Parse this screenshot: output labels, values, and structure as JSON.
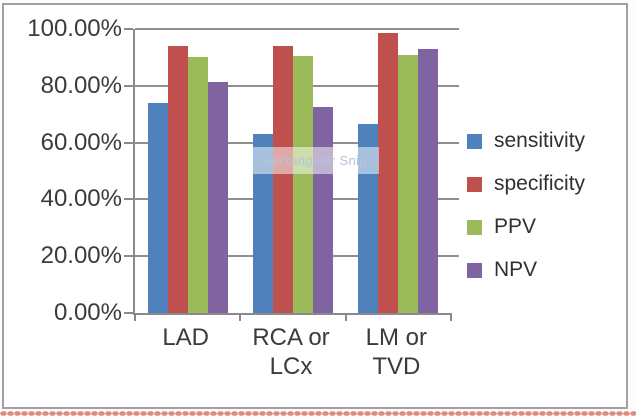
{
  "window": {
    "tooltip": "Rectangular Snip"
  },
  "chart_data": {
    "type": "bar",
    "title": "",
    "xlabel": "",
    "ylabel": "",
    "categories": [
      "LAD",
      "RCA or LCx",
      "LM or TVD"
    ],
    "series": [
      {
        "name": "sensitivity",
        "color": "#4F81BD",
        "values": [
          74,
          63,
          66.5
        ]
      },
      {
        "name": "specificity",
        "color": "#C0504D",
        "values": [
          94,
          94,
          98.5
        ]
      },
      {
        "name": "PPV",
        "color": "#9BBB59",
        "values": [
          90,
          90.5,
          91
        ]
      },
      {
        "name": "NPV",
        "color": "#8064A2",
        "values": [
          81.5,
          72.5,
          93
        ]
      }
    ],
    "y_ticks": [
      "100.00%",
      "80.00%",
      "60.00%",
      "40.00%",
      "20.00%",
      "0.00%"
    ],
    "ylim": [
      0,
      100
    ],
    "grid": true,
    "legend_position": "right",
    "colors": {
      "axis": "#8a8a8a",
      "gridline": "#8f8f8f",
      "text": "#3b3b3b",
      "frame_border": "#a1a1a1",
      "squiggle": "#e18a7b"
    }
  }
}
